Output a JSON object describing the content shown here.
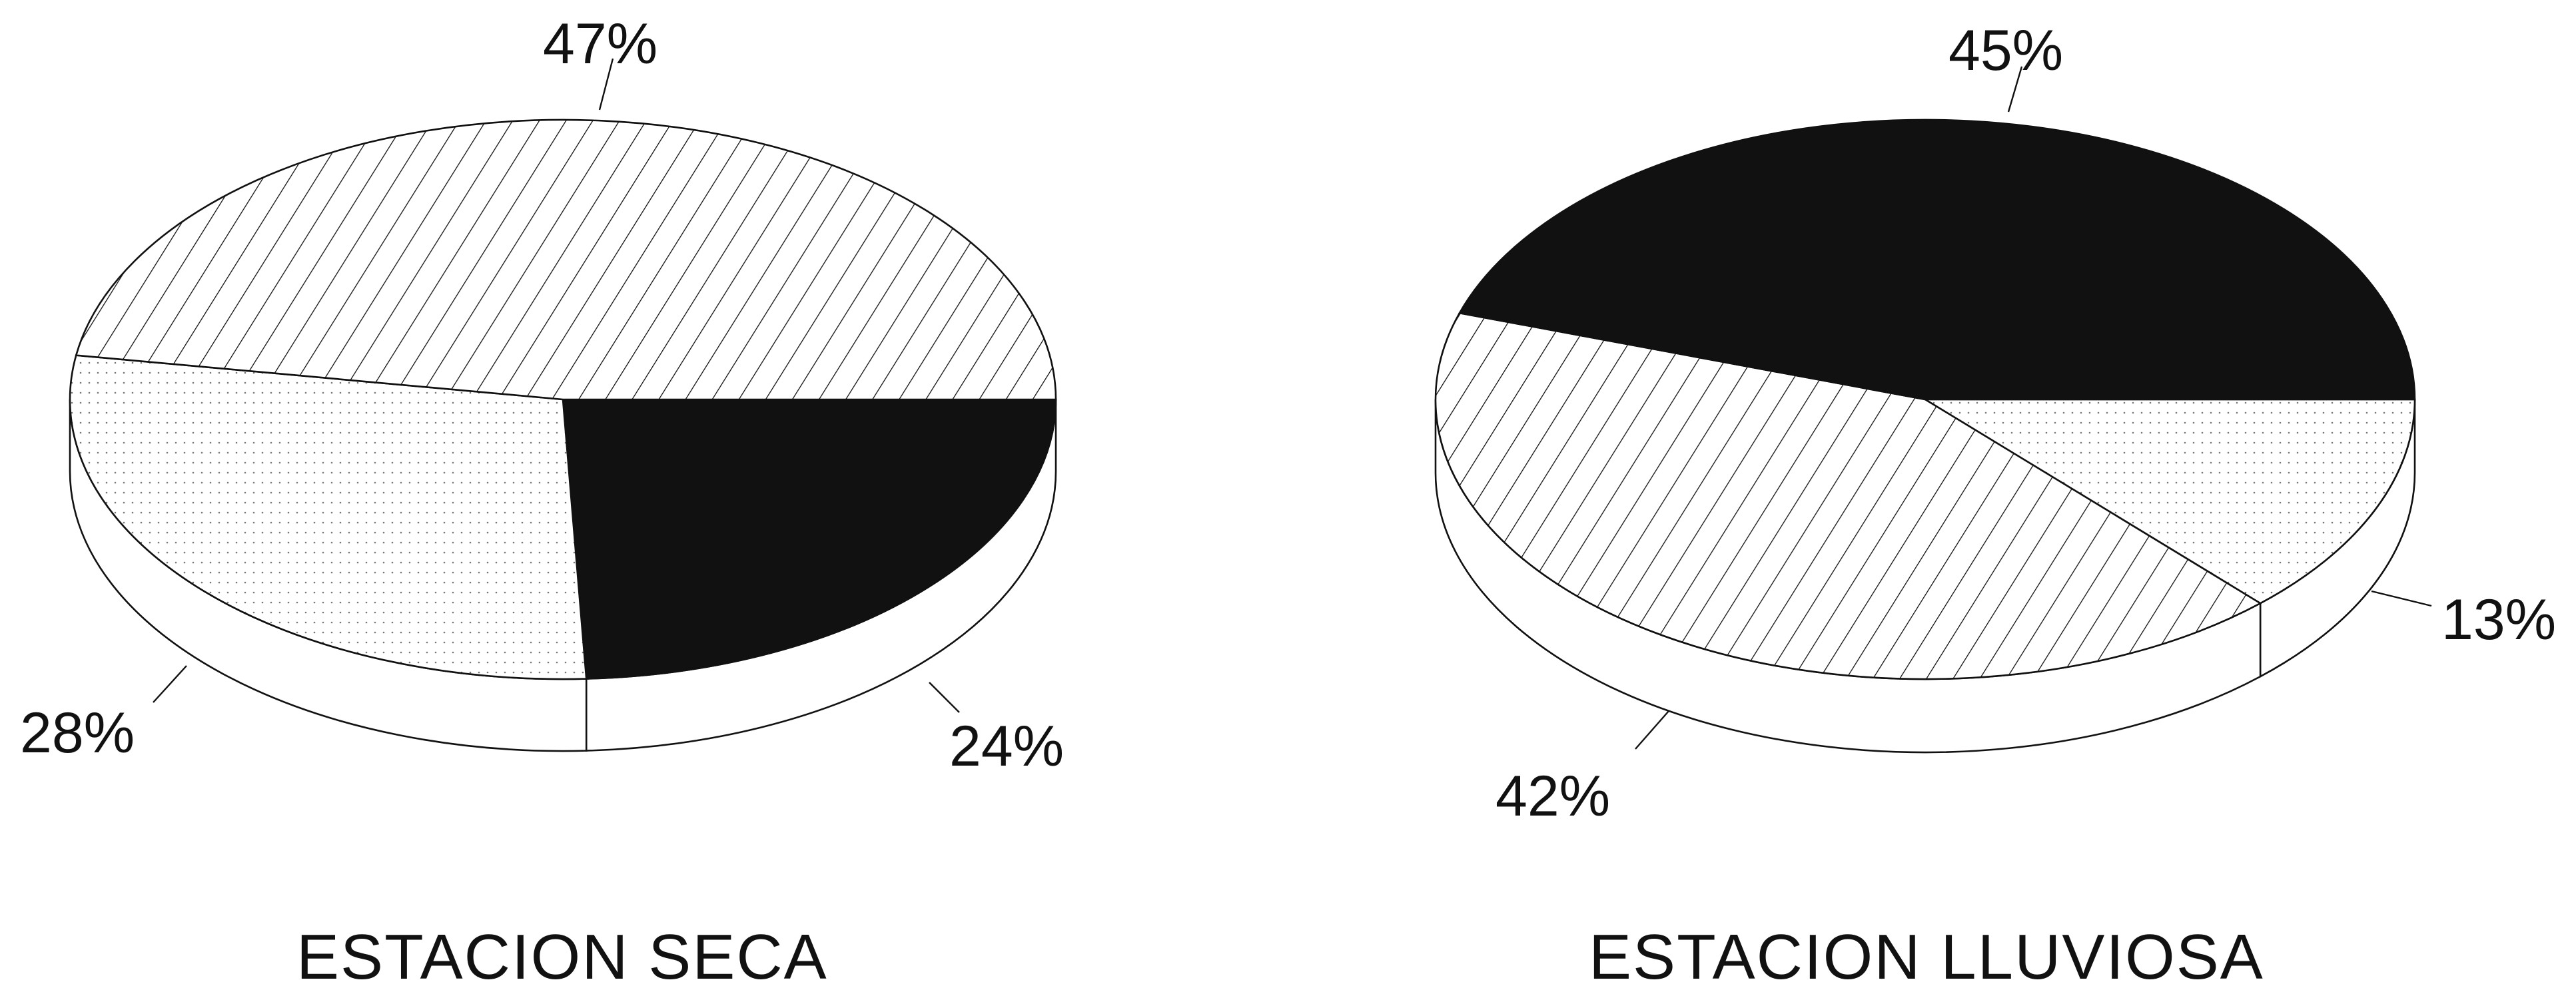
{
  "chart_data": [
    {
      "type": "pie",
      "style": "3d",
      "title": "ESTACION SECA",
      "slices": [
        {
          "label": "47%",
          "value": 47,
          "pattern": "diagonal-hatch"
        },
        {
          "label": "24%",
          "value": 24,
          "pattern": "solid-black"
        },
        {
          "label": "28%",
          "value": 28,
          "pattern": "dotted"
        }
      ]
    },
    {
      "type": "pie",
      "style": "3d",
      "title": "ESTACION LLUVIOSA",
      "slices": [
        {
          "label": "45%",
          "value": 45,
          "pattern": "solid-black"
        },
        {
          "label": "13%",
          "value": 13,
          "pattern": "dotted"
        },
        {
          "label": "42%",
          "value": 42,
          "pattern": "diagonal-hatch"
        }
      ]
    }
  ],
  "colors": {
    "ink": "#111111",
    "background": "#ffffff"
  }
}
